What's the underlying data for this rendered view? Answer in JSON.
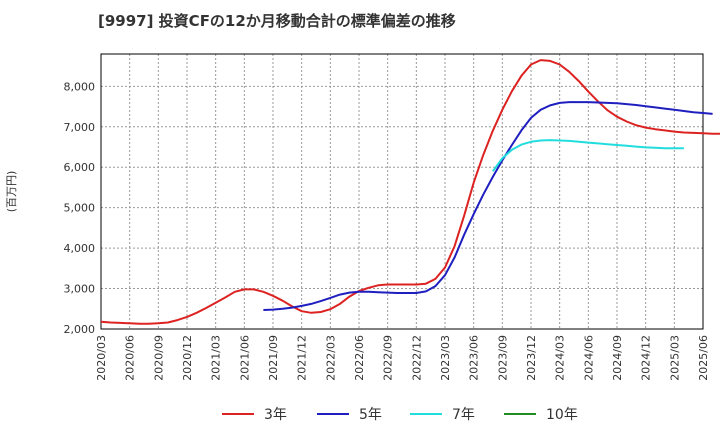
{
  "chart_data": {
    "type": "line",
    "title": "[9997]  投資CFの12か月移動合計の標準偏差の推移",
    "ylabel": "(百万円)",
    "xlabel": "",
    "ylim": [
      2000,
      8800
    ],
    "y_ticks": [
      2000,
      3000,
      4000,
      5000,
      6000,
      7000,
      8000
    ],
    "y_tick_labels": [
      "2,000",
      "3,000",
      "4,000",
      "5,000",
      "6,000",
      "7,000",
      "8,000"
    ],
    "x_tick_labels": [
      "2020/03",
      "2020/06",
      "2020/09",
      "2020/12",
      "2021/03",
      "2021/06",
      "2021/09",
      "2021/12",
      "2022/03",
      "2022/06",
      "2022/09",
      "2022/12",
      "2023/03",
      "2023/06",
      "2023/09",
      "2023/12",
      "2024/03",
      "2024/06",
      "2024/09",
      "2024/12",
      "2025/03",
      "2025/06"
    ],
    "grid": true,
    "legend_position": "bottom",
    "series": [
      {
        "name": "3年",
        "color": "#dd2222",
        "start": "2020/03",
        "values": [
          2180,
          2160,
          2150,
          2140,
          2130,
          2130,
          2140,
          2160,
          2220,
          2300,
          2400,
          2520,
          2650,
          2780,
          2920,
          2980,
          2980,
          2920,
          2820,
          2700,
          2560,
          2440,
          2400,
          2420,
          2490,
          2620,
          2800,
          2940,
          3020,
          3080,
          3100,
          3100,
          3100,
          3100,
          3120,
          3240,
          3520,
          4050,
          4800,
          5620,
          6300,
          6900,
          7420,
          7880,
          8260,
          8540,
          8650,
          8630,
          8540,
          8360,
          8130,
          7870,
          7630,
          7410,
          7250,
          7130,
          7040,
          6980,
          6940,
          6910,
          6880,
          6860,
          6850,
          6840,
          6830,
          6830
        ]
      },
      {
        "name": "5年",
        "color": "#1f1fc0",
        "start": "2021/08",
        "values": [
          2470,
          2480,
          2500,
          2530,
          2570,
          2620,
          2690,
          2770,
          2850,
          2900,
          2920,
          2920,
          2910,
          2900,
          2890,
          2890,
          2890,
          2930,
          3060,
          3330,
          3770,
          4330,
          4840,
          5320,
          5760,
          6170,
          6550,
          6910,
          7220,
          7420,
          7530,
          7590,
          7610,
          7610,
          7610,
          7600,
          7590,
          7580,
          7560,
          7540,
          7510,
          7480,
          7450,
          7420,
          7390,
          7360,
          7340,
          7320
        ]
      },
      {
        "name": "7年",
        "color": "#22dddd",
        "start": "2023/08",
        "values": [
          5900,
          6220,
          6430,
          6560,
          6630,
          6660,
          6670,
          6660,
          6650,
          6630,
          6610,
          6590,
          6570,
          6550,
          6530,
          6510,
          6490,
          6480,
          6470,
          6470,
          6470
        ]
      },
      {
        "name": "10年",
        "color": "#228b22",
        "start": "2025/03",
        "values": []
      }
    ]
  }
}
